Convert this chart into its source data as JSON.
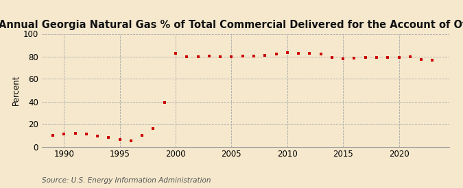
{
  "title": "Annual Georgia Natural Gas % of Total Commercial Delivered for the Account of Others",
  "ylabel": "Percent",
  "source": "Source: U.S. Energy Information Administration",
  "background_color": "#f5e8cc",
  "plot_bg_color": "#f5e8cc",
  "marker_color": "#cc0000",
  "grid_color": "#aaaaaa",
  "years": [
    1989,
    1990,
    1991,
    1992,
    1993,
    1994,
    1995,
    1996,
    1997,
    1998,
    1999,
    2000,
    2001,
    2002,
    2003,
    2004,
    2005,
    2006,
    2007,
    2008,
    2009,
    2010,
    2011,
    2012,
    2013,
    2014,
    2015,
    2016,
    2017,
    2018,
    2019,
    2020,
    2021,
    2022,
    2023
  ],
  "values": [
    10.2,
    11.3,
    12.1,
    11.0,
    9.1,
    7.9,
    6.1,
    5.2,
    10.3,
    16.2,
    39.0,
    83.0,
    80.0,
    79.5,
    80.2,
    80.0,
    79.8,
    80.3,
    80.5,
    81.0,
    82.0,
    83.2,
    82.5,
    83.0,
    82.0,
    79.0,
    78.0,
    78.5,
    79.0,
    79.2,
    79.0,
    79.0,
    79.5,
    77.5,
    76.8
  ],
  "ylim": [
    0,
    100
  ],
  "yticks": [
    0,
    20,
    40,
    60,
    80,
    100
  ],
  "xtick_major": [
    1990,
    1995,
    2000,
    2005,
    2010,
    2015,
    2020
  ],
  "xlim": [
    1988.0,
    2024.5
  ],
  "title_fontsize": 10.5,
  "axis_fontsize": 8.5,
  "source_fontsize": 7.5
}
